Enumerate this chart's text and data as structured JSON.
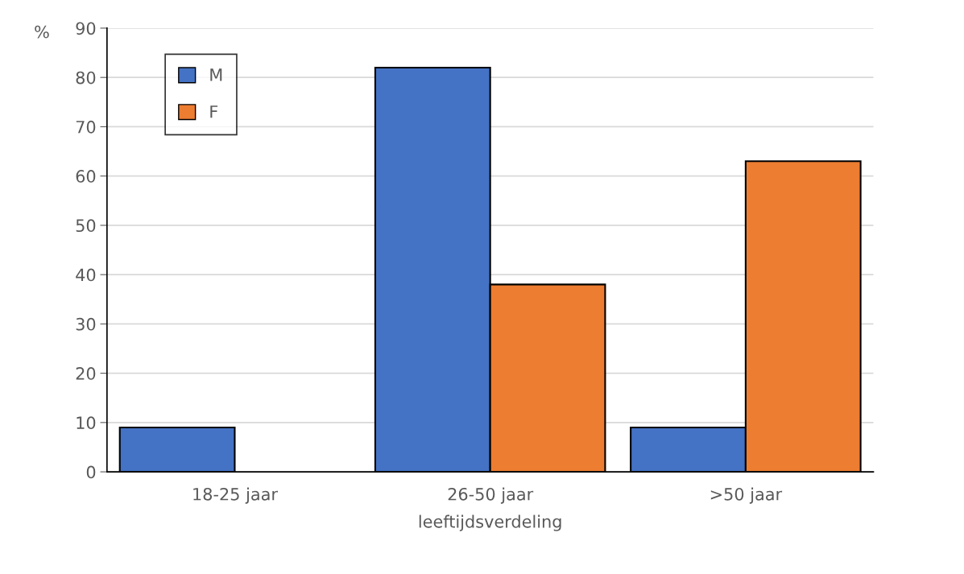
{
  "chart_data": {
    "type": "bar",
    "xlabel": "leeftijdsverdeling",
    "ylabel": "%",
    "categories": [
      "18-25 jaar",
      "26-50 jaar",
      ">50 jaar"
    ],
    "series": [
      {
        "name": "M",
        "color": "#4472c4",
        "values": [
          9,
          82,
          9
        ]
      },
      {
        "name": "F",
        "color": "#ed7d31",
        "values": [
          null,
          38,
          63
        ]
      }
    ],
    "ylim": [
      0,
      90
    ],
    "yticks": [
      0,
      10,
      20,
      30,
      40,
      50,
      60,
      70,
      80,
      90
    ],
    "grid": "y",
    "legend": "top left"
  }
}
